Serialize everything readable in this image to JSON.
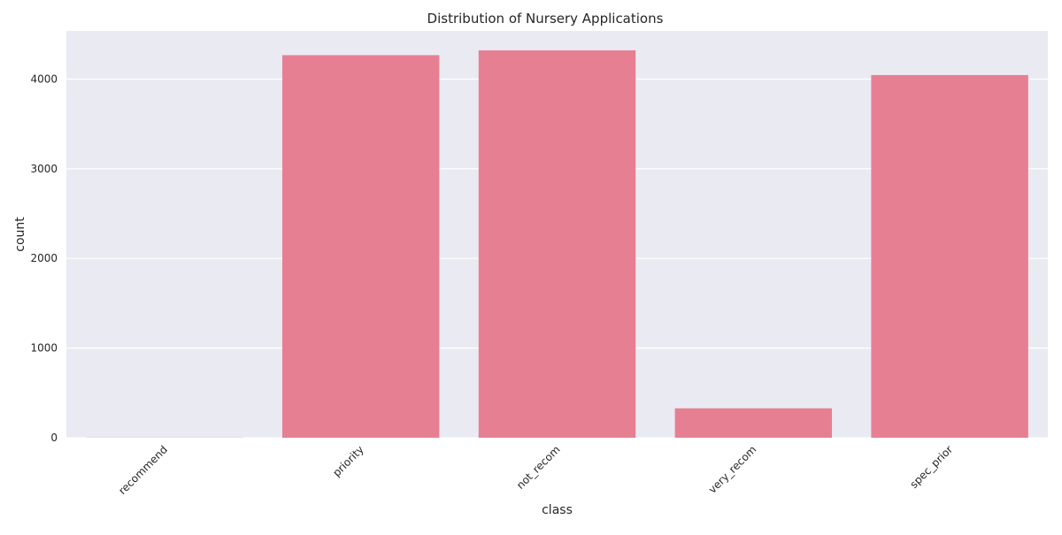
{
  "chart_data": {
    "type": "bar",
    "title": "Distribution of Nursery Applications",
    "xlabel": "class",
    "ylabel": "count",
    "categories": [
      "recommend",
      "priority",
      "not_recom",
      "very_recom",
      "spec_prior"
    ],
    "values": [
      2,
      4266,
      4320,
      328,
      4044
    ],
    "ylim": [
      0,
      4536
    ],
    "yticks": [
      0,
      1000,
      2000,
      3000,
      4000
    ],
    "grid": true,
    "legend": "none",
    "colors": {
      "bar": "#e77f92",
      "plot_background": "#eaeaf2",
      "grid": "#ffffff",
      "text": "#262626"
    }
  }
}
